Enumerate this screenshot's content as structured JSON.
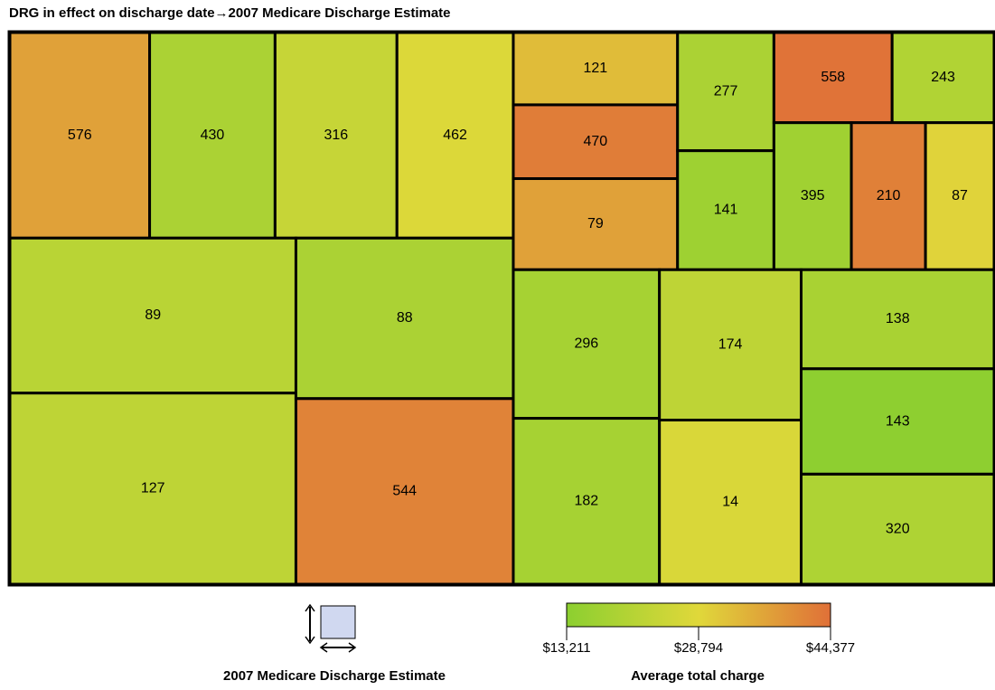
{
  "chart_data": {
    "type": "treemap",
    "title": "DRG in effect on discharge date→2007 Medicare Discharge Estimate",
    "size_legend_title": "2007 Medicare Discharge Estimate",
    "color_legend_title": "Average total charge",
    "colorlim": [
      13211,
      44377
    ],
    "colors": [
      "#8ccf30",
      "#e0d83a",
      "#e07038"
    ],
    "colorticks": [
      {
        "value": 13211,
        "label": "$13,211"
      },
      {
        "value": 28794,
        "label": "$28,794"
      },
      {
        "value": 44377,
        "label": "$44,377"
      }
    ],
    "tree": {
      "children": [
        {
          "children": [
            {
              "children": [
                {
                  "label": "576",
                  "value": 353,
                  "charge": 37000
                },
                {
                  "label": "430",
                  "value": 317,
                  "charge": 19000
                },
                {
                  "label": "316",
                  "value": 308,
                  "charge": 24000
                },
                {
                  "label": "462",
                  "value": 294,
                  "charge": 28000
                }
              ]
            },
            {
              "children": [
                {
                  "children": [
                    {
                      "label": "89",
                      "value": 545,
                      "charge": 21500
                    },
                    {
                      "label": "127",
                      "value": 672,
                      "charge": 22500
                    }
                  ]
                },
                {
                  "children": [
                    {
                      "label": "88",
                      "value": 429,
                      "charge": 19000
                    },
                    {
                      "label": "544",
                      "value": 496,
                      "charge": 41500
                    }
                  ]
                }
              ]
            }
          ]
        },
        {
          "children": [
            {
              "children": [
                {
                  "children": [
                    {
                      "label": "121",
                      "value": 146,
                      "charge": 33000
                    },
                    {
                      "label": "470",
                      "value": 149,
                      "charge": 42500
                    },
                    {
                      "label": "79",
                      "value": 184,
                      "charge": 37000
                    }
                  ]
                },
                {
                  "children": [
                    {
                      "label": "277",
                      "value": 140,
                      "charge": 19000
                    },
                    {
                      "label": "141",
                      "value": 141,
                      "charge": 16500
                    }
                  ]
                },
                {
                  "children": [
                    {
                      "children": [
                        {
                          "label": "558",
                          "value": 131,
                          "charge": 44000
                        },
                        {
                          "label": "243",
                          "value": 113,
                          "charge": 20000
                        }
                      ]
                    },
                    {
                      "children": [
                        {
                          "label": "395",
                          "value": 140,
                          "charge": 17000
                        },
                        {
                          "label": "210",
                          "value": 134,
                          "charge": 42000
                        },
                        {
                          "label": "87",
                          "value": 124,
                          "charge": 29500
                        }
                      ]
                    }
                  ]
                }
              ]
            },
            {
              "children": [
                {
                  "children": [
                    {
                      "label": "296",
                      "value": 267,
                      "charge": 18000
                    },
                    {
                      "label": "182",
                      "value": 298,
                      "charge": 18000
                    }
                  ]
                },
                {
                  "children": [
                    {
                      "label": "174",
                      "value": 262,
                      "charge": 22500
                    },
                    {
                      "label": "14",
                      "value": 286,
                      "charge": 27500
                    }
                  ]
                },
                {
                  "children": [
                    {
                      "label": "138",
                      "value": 235,
                      "charge": 18500
                    },
                    {
                      "label": "143",
                      "value": 250,
                      "charge": 13500
                    },
                    {
                      "label": "320",
                      "value": 261,
                      "charge": 19500
                    }
                  ]
                }
              ]
            }
          ]
        }
      ]
    }
  }
}
